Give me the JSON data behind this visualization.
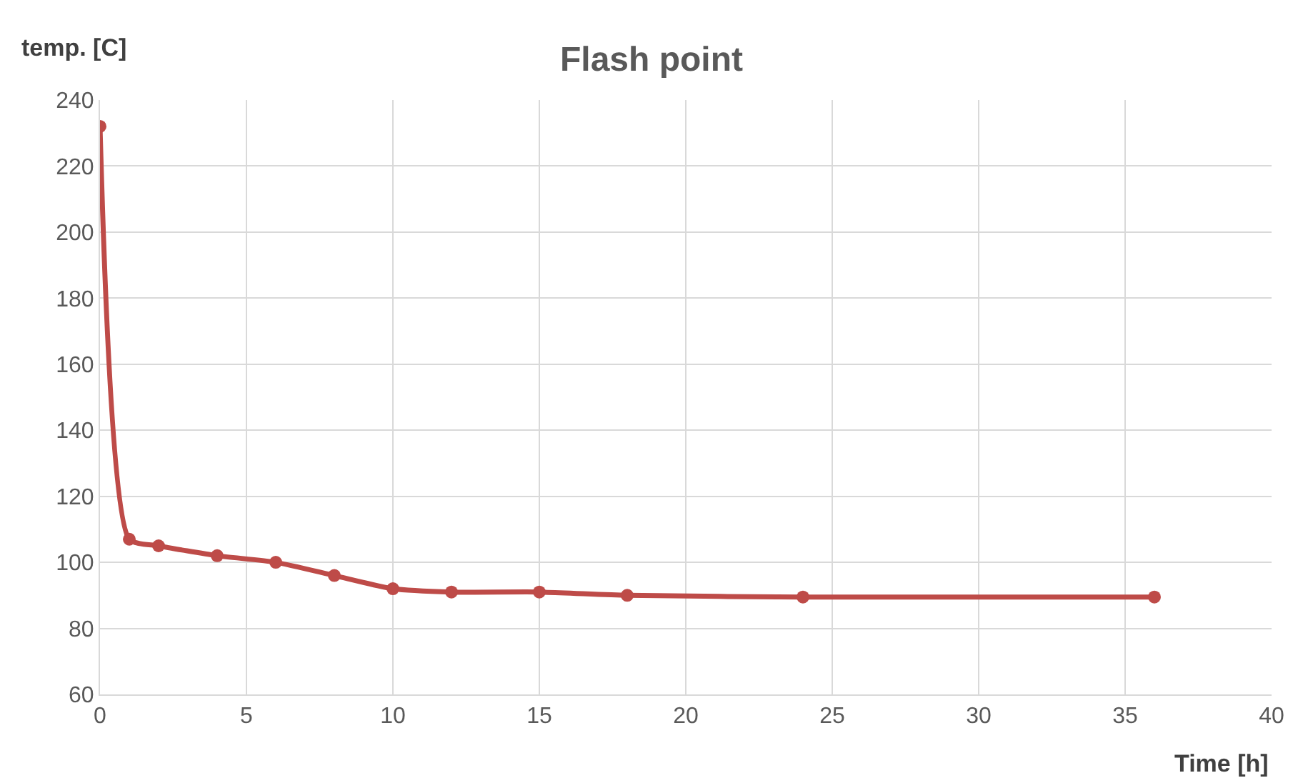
{
  "chart_data": {
    "type": "line",
    "title": "Flash point",
    "xlabel": "Time [h]",
    "ylabel": "temp. [C]",
    "x": [
      0,
      1,
      2,
      4,
      6,
      8,
      10,
      12,
      15,
      18,
      24,
      36
    ],
    "series": [
      {
        "color": "#be4b48",
        "values": [
          232,
          107,
          105,
          102,
          100,
          96,
          92,
          91,
          91,
          90,
          89.5,
          89.5
        ]
      }
    ],
    "xlim": [
      0,
      40
    ],
    "xticks": [
      0,
      5,
      10,
      15,
      20,
      25,
      30,
      35,
      40
    ],
    "ylim": [
      60,
      240
    ],
    "yticks": [
      60,
      80,
      100,
      120,
      140,
      160,
      180,
      200,
      220,
      240
    ],
    "grid": true,
    "marker": "circle",
    "line_style": "solid",
    "legend": false
  }
}
